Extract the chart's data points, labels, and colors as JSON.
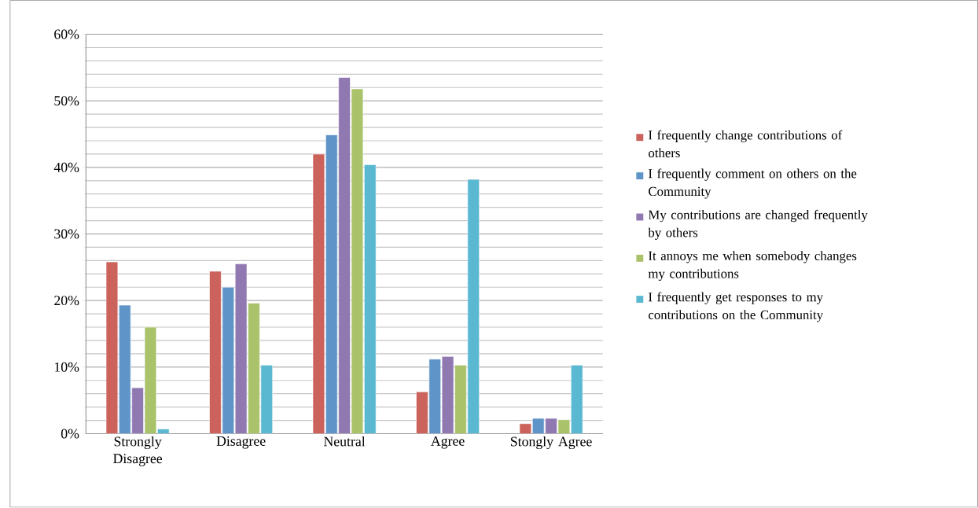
{
  "chart_data": {
    "type": "bar",
    "categories": [
      "Strongly Disagree",
      "Disagree",
      "Neutral",
      "Agree",
      "Stongly Agree"
    ],
    "series": [
      {
        "name": "I frequently change contributions of others",
        "color": "#cc625c",
        "values": [
          25.8,
          24.4,
          42.0,
          6.3,
          1.5
        ]
      },
      {
        "name": "I frequently comment on others on the Community",
        "color": "#5f94c9",
        "values": [
          19.3,
          22.0,
          44.9,
          11.2,
          2.3
        ]
      },
      {
        "name": "My contributions are changed frequently by others",
        "color": "#9079b1",
        "values": [
          6.9,
          25.5,
          53.5,
          11.6,
          2.3
        ]
      },
      {
        "name": "It annoys me when somebody changes my contributions",
        "color": "#aac36a",
        "values": [
          16.0,
          19.6,
          51.8,
          10.3,
          2.1
        ]
      },
      {
        "name": "I frequently get responses to my contributions on the Community",
        "color": "#5bb8d1",
        "values": [
          0.7,
          10.3,
          40.4,
          38.2,
          10.3
        ]
      }
    ],
    "ylim": [
      0,
      60
    ],
    "yticks": [
      {
        "value": 0,
        "label": "0%"
      },
      {
        "value": 10,
        "label": "10%"
      },
      {
        "value": 20,
        "label": "20%"
      },
      {
        "value": 30,
        "label": "30%"
      },
      {
        "value": 40,
        "label": "40%"
      },
      {
        "value": 50,
        "label": "50%"
      },
      {
        "value": 60,
        "label": "60%"
      }
    ],
    "grid": "y",
    "legend": "right"
  }
}
